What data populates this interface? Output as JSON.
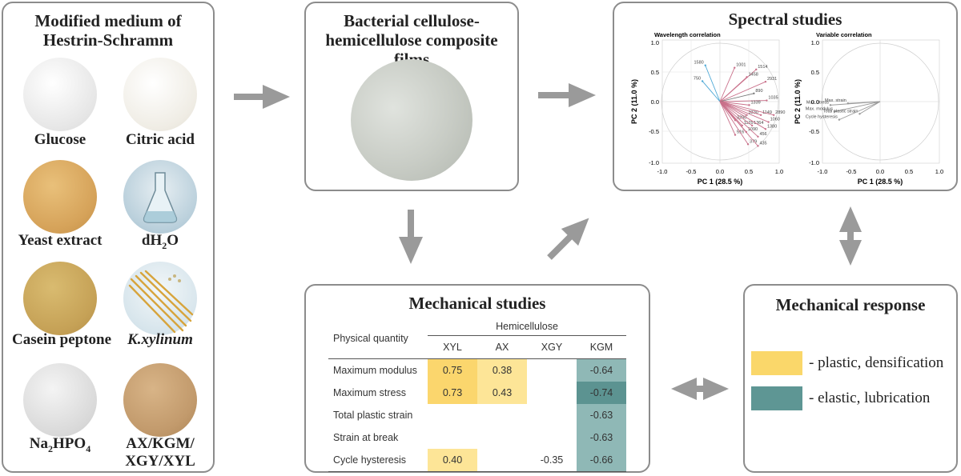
{
  "medium": {
    "title_line1": "Modified medium of",
    "title_line2": "Hestrin-Schramm",
    "items": [
      {
        "label": "Glucose",
        "color": "#f2f2f2"
      },
      {
        "label": "Citric acid",
        "color": "#f3f1ec"
      },
      {
        "label": "Yeast extract",
        "color": "#d9aa5e"
      },
      {
        "label": "dH",
        "sub": "2",
        "tail": "O",
        "color": "#bcd3df"
      },
      {
        "label": "Casein peptone",
        "color": "#c7a558"
      },
      {
        "label": "K.xylinum",
        "color": "#dde9ef"
      },
      {
        "label": "Na",
        "sub": "2",
        "tail": "HPO",
        "sub2": "4",
        "color": "#dcdcdc"
      },
      {
        "label_line1": "AX/KGM/",
        "label_line2": "XGY/XYL",
        "color": "#c8a072"
      }
    ]
  },
  "films": {
    "title_line1": "Bacterial cellulose-",
    "title_line2": "hemicellulose composite films",
    "color": "#c9cdc7"
  },
  "spectral": {
    "title": "Spectral studies",
    "left": {
      "subtitle": "Wavelength correlation",
      "xlabel": "PC 1 (28.5 %)",
      "ylabel": "PC 2 (11.0 %)",
      "xticks": [
        "-1.0",
        "-0.5",
        "0.0",
        "0.5",
        "1.0"
      ],
      "yticks": [
        "-1.0",
        "-0.5",
        "0.0",
        "0.5",
        "1.0"
      ],
      "points": [
        {
          "label": "1580",
          "x": -0.25,
          "y": 0.62,
          "color": "#4fa9d6"
        },
        {
          "label": "750",
          "x": -0.3,
          "y": 0.35,
          "color": "#4fa9d6"
        },
        {
          "label": "1001",
          "x": 0.25,
          "y": 0.58,
          "color": "#c9708a"
        },
        {
          "label": "1514",
          "x": 0.62,
          "y": 0.55,
          "color": "#c9708a"
        },
        {
          "label": "1458",
          "x": 0.46,
          "y": 0.42,
          "color": "#c9708a"
        },
        {
          "label": "2931",
          "x": 0.78,
          "y": 0.34,
          "color": "#c9708a"
        },
        {
          "label": "890",
          "x": 0.58,
          "y": 0.14,
          "color": "#777777"
        },
        {
          "label": "1035",
          "x": 0.8,
          "y": 0.02,
          "color": "#c9708a"
        },
        {
          "label": "1339",
          "x": 0.5,
          "y": -0.06,
          "color": "#c9708a"
        },
        {
          "label": "3330",
          "x": 0.46,
          "y": -0.23,
          "color": "#c9708a"
        },
        {
          "label": "1149",
          "x": 0.7,
          "y": -0.23,
          "color": "#c9708a"
        },
        {
          "label": "2890",
          "x": 0.92,
          "y": -0.23,
          "color": "#c9708a"
        },
        {
          "label": "3280",
          "x": 0.26,
          "y": -0.32,
          "color": "#c9708a"
        },
        {
          "label": "1060",
          "x": 0.83,
          "y": -0.35,
          "color": "#c9708a"
        },
        {
          "label": "1125",
          "x": 0.38,
          "y": -0.41,
          "color": "#c9708a"
        },
        {
          "label": "1364",
          "x": 0.55,
          "y": -0.41,
          "color": "#c9708a"
        },
        {
          "label": "1380",
          "x": 0.78,
          "y": -0.47,
          "color": "#c9708a"
        },
        {
          "label": "1090",
          "x": 0.45,
          "y": -0.52,
          "color": "#c9708a"
        },
        {
          "label": "516",
          "x": 0.26,
          "y": -0.57,
          "color": "#c9708a"
        },
        {
          "label": "456",
          "x": 0.65,
          "y": -0.6,
          "color": "#c9708a"
        },
        {
          "label": "379",
          "x": 0.48,
          "y": -0.73,
          "color": "#c9708a"
        },
        {
          "label": "435",
          "x": 0.65,
          "y": -0.76,
          "color": "#c9708a"
        }
      ]
    },
    "right": {
      "subtitle": "Variable correlation",
      "xlabel": "PC 1 (28.5 %)",
      "ylabel": "PC 2 (11.0 %)",
      "xticks": [
        "-1.0",
        "-0.5",
        "0.0",
        "0.5",
        "1.0"
      ],
      "yticks": [
        "-1.0",
        "-0.5",
        "0.0",
        "0.5",
        "1.0"
      ],
      "points": [
        {
          "label": "Max. stress",
          "x": -0.85,
          "y": -0.06,
          "color": "#999999"
        },
        {
          "label": "Max. strain",
          "x": -0.55,
          "y": -0.03,
          "color": "#999999"
        },
        {
          "label": "Max. modulus",
          "x": -0.78,
          "y": -0.17,
          "color": "#999999"
        },
        {
          "label": "Total plastic strain",
          "x": -0.35,
          "y": -0.21,
          "color": "#999999"
        },
        {
          "label": "Cycle hysteresis",
          "x": -0.7,
          "y": -0.31,
          "color": "#999999"
        }
      ]
    }
  },
  "mechanical": {
    "title": "Mechanical studies",
    "table": {
      "corner": "Physical quantity",
      "group_header": "Hemicellulose",
      "columns": [
        "XYL",
        "AX",
        "XGY",
        "KGM"
      ],
      "rows": [
        {
          "name": "Maximum modulus",
          "cells": [
            "0.75",
            "0.38",
            "",
            "-0.64"
          ]
        },
        {
          "name": "Maximum stress",
          "cells": [
            "0.73",
            "0.43",
            "",
            "-0.74"
          ]
        },
        {
          "name": "Total plastic strain",
          "cells": [
            "",
            "",
            "",
            "-0.63"
          ]
        },
        {
          "name": "Strain at break",
          "cells": [
            "",
            "",
            "",
            "-0.63"
          ]
        },
        {
          "name": "Cycle hysteresis",
          "cells": [
            "0.40",
            "",
            "-0.35",
            "-0.66"
          ]
        }
      ]
    }
  },
  "response": {
    "title": "Mechanical response",
    "legend": [
      {
        "text": "- plastic, densification",
        "color": "#fad76a"
      },
      {
        "text": "- elastic, lubrication",
        "color": "#5e9694"
      }
    ]
  }
}
